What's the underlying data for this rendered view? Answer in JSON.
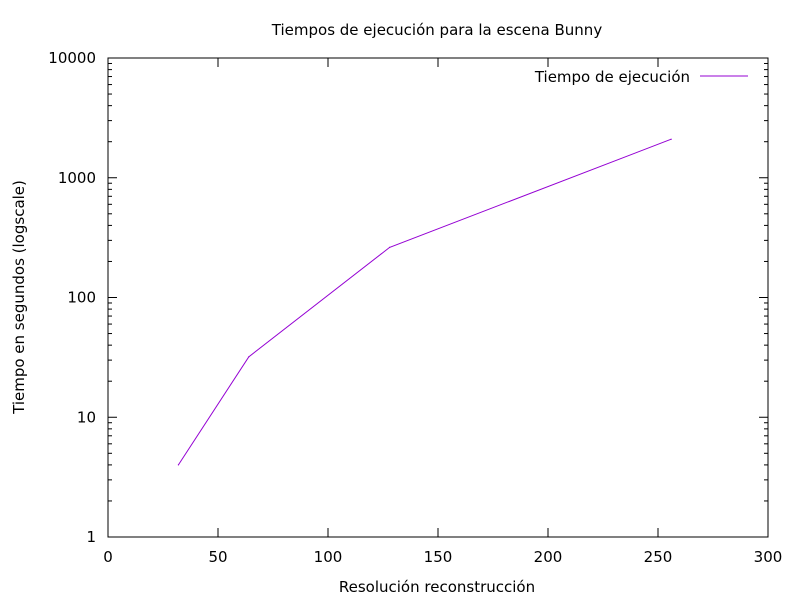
{
  "chart_data": {
    "type": "line",
    "title": "Tiempos de ejecución para la escena Bunny",
    "xlabel": "Resolución reconstrucción",
    "ylabel": "Tiempo en segundos (logscale)",
    "xlim": [
      0,
      300
    ],
    "ylim": [
      1,
      10000
    ],
    "yscale": "log",
    "grid": false,
    "legend_position": "top-right",
    "xticks": [
      0,
      50,
      100,
      150,
      200,
      250,
      300
    ],
    "xtick_labels": [
      "0",
      "50",
      "100",
      "150",
      "200",
      "250",
      "300"
    ],
    "yticks": [
      1,
      10,
      100,
      1000,
      10000
    ],
    "ytick_labels": [
      "1",
      "10",
      "100",
      "1000",
      "10000"
    ],
    "series": [
      {
        "name": "Tiempo de ejecución",
        "color": "#9400d3",
        "x": [
          32,
          64,
          128,
          256
        ],
        "y": [
          4,
          32,
          262,
          2100
        ]
      }
    ]
  }
}
